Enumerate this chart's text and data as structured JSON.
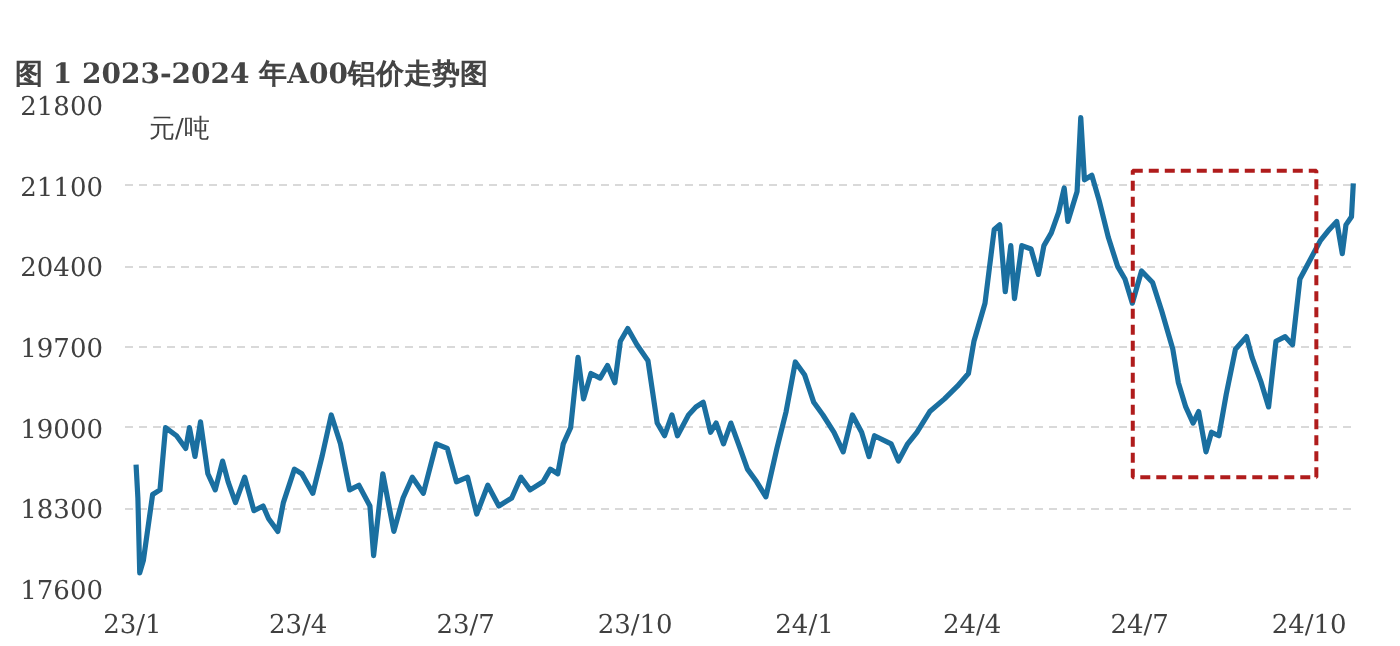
{
  "chart_data": {
    "type": "line",
    "title": "图 1 2023-2024 年A00铝价走势图",
    "ylabel": "元/吨",
    "xlim": [
      "2022-12-28",
      "2024-10-27"
    ],
    "xticks": [
      {
        "value": "2023-01-01",
        "label": "23/1"
      },
      {
        "value": "2023-04-01",
        "label": "23/4"
      },
      {
        "value": "2023-07-01",
        "label": "23/7"
      },
      {
        "value": "2023-10-01",
        "label": "23/10"
      },
      {
        "value": "2024-01-01",
        "label": "24/1"
      },
      {
        "value": "2024-04-01",
        "label": "24/4"
      },
      {
        "value": "2024-07-01",
        "label": "24/7"
      },
      {
        "value": "2024-10-01",
        "label": "24/10"
      }
    ],
    "ylim": [
      17600,
      21800
    ],
    "yticks": [
      17600,
      18300,
      19000,
      19700,
      20400,
      21100,
      21800
    ],
    "grid": "y",
    "marker": "none",
    "line_style": "solid",
    "series": [
      {
        "color": "#1a6fa0",
        "x": [
          "2023-01-03",
          "2023-01-04",
          "2023-01-05",
          "2023-01-07",
          "2023-01-12",
          "2023-01-16",
          "2023-01-19",
          "2023-01-25",
          "2023-01-30",
          "2023-02-01",
          "2023-02-04",
          "2023-02-07",
          "2023-02-11",
          "2023-02-15",
          "2023-02-19",
          "2023-02-22",
          "2023-02-26",
          "2023-03-03",
          "2023-03-08",
          "2023-03-13",
          "2023-03-16",
          "2023-03-21",
          "2023-03-24",
          "2023-03-30",
          "2023-04-03",
          "2023-04-09",
          "2023-04-14",
          "2023-04-19",
          "2023-04-24",
          "2023-04-29",
          "2023-05-04",
          "2023-05-10",
          "2023-05-12",
          "2023-05-17",
          "2023-05-23",
          "2023-05-28",
          "2023-06-02",
          "2023-06-08",
          "2023-06-15",
          "2023-06-21",
          "2023-06-26",
          "2023-07-02",
          "2023-07-07",
          "2023-07-13",
          "2023-07-19",
          "2023-07-26",
          "2023-07-31",
          "2023-08-05",
          "2023-08-12",
          "2023-08-16",
          "2023-08-20",
          "2023-08-23",
          "2023-08-27",
          "2023-08-31",
          "2023-09-03",
          "2023-09-07",
          "2023-09-12",
          "2023-09-16",
          "2023-09-20",
          "2023-09-23",
          "2023-09-27",
          "2023-10-02",
          "2023-10-08",
          "2023-10-13",
          "2023-10-17",
          "2023-10-21",
          "2023-10-24",
          "2023-10-30",
          "2023-11-03",
          "2023-11-07",
          "2023-11-11",
          "2023-11-14",
          "2023-11-18",
          "2023-11-22",
          "2023-11-27",
          "2023-12-01",
          "2023-12-06",
          "2023-12-11",
          "2023-12-17",
          "2023-12-22",
          "2023-12-27",
          "2024-01-01",
          "2024-01-06",
          "2024-01-11",
          "2024-01-17",
          "2024-01-22",
          "2024-01-27",
          "2024-02-01",
          "2024-02-05",
          "2024-02-08",
          "2024-02-17",
          "2024-02-21",
          "2024-02-26",
          "2024-03-02",
          "2024-03-09",
          "2024-03-17",
          "2024-03-24",
          "2024-03-30",
          "2024-04-02",
          "2024-04-08",
          "2024-04-13",
          "2024-04-16",
          "2024-04-19",
          "2024-04-22",
          "2024-04-24",
          "2024-04-28",
          "2024-05-03",
          "2024-05-07",
          "2024-05-10",
          "2024-05-14",
          "2024-05-18",
          "2024-05-21",
          "2024-05-23",
          "2024-05-28",
          "2024-05-30",
          "2024-06-01",
          "2024-06-05",
          "2024-06-09",
          "2024-06-14",
          "2024-06-19",
          "2024-06-23",
          "2024-06-27",
          "2024-07-02",
          "2024-07-08",
          "2024-07-13",
          "2024-07-19",
          "2024-07-22",
          "2024-07-26",
          "2024-07-30",
          "2024-08-02",
          "2024-08-06",
          "2024-08-09",
          "2024-08-13",
          "2024-08-17",
          "2024-08-22",
          "2024-08-28",
          "2024-08-31",
          "2024-09-05",
          "2024-09-09",
          "2024-09-13",
          "2024-09-18",
          "2024-09-22",
          "2024-09-26",
          "2024-10-01",
          "2024-10-07",
          "2024-10-12",
          "2024-10-16",
          "2024-10-19",
          "2024-10-21",
          "2024-10-24",
          "2024-10-25"
        ],
        "values": [
          18680,
          18390,
          17740,
          17850,
          18420,
          18460,
          19000,
          18930,
          18820,
          19000,
          18750,
          19050,
          18600,
          18460,
          18710,
          18530,
          18350,
          18570,
          18280,
          18320,
          18210,
          18100,
          18350,
          18640,
          18600,
          18430,
          18750,
          19110,
          18860,
          18460,
          18500,
          18320,
          17890,
          18600,
          18100,
          18390,
          18570,
          18430,
          18860,
          18820,
          18530,
          18570,
          18250,
          18500,
          18320,
          18390,
          18570,
          18460,
          18530,
          18640,
          18600,
          18860,
          19000,
          19610,
          19250,
          19470,
          19430,
          19540,
          19390,
          19750,
          19860,
          19720,
          19580,
          19040,
          18930,
          19110,
          18930,
          19110,
          19180,
          19220,
          18960,
          19040,
          18860,
          19040,
          18820,
          18640,
          18530,
          18400,
          18820,
          19140,
          19570,
          19460,
          19220,
          19110,
          18960,
          18790,
          19110,
          18960,
          18750,
          18930,
          18860,
          18710,
          18860,
          18960,
          19140,
          19250,
          19360,
          19470,
          19750,
          20080,
          20720,
          20760,
          20180,
          20580,
          20120,
          20580,
          20550,
          20330,
          20580,
          20690,
          20870,
          21080,
          20790,
          21050,
          21690,
          21150,
          21190,
          20970,
          20650,
          20400,
          20290,
          20080,
          20360,
          20260,
          20010,
          19680,
          19390,
          19180,
          19040,
          19140,
          18790,
          18960,
          18930,
          19290,
          19680,
          19790,
          19610,
          19390,
          19180,
          19750,
          19790,
          19720,
          20290,
          20440,
          20620,
          20720,
          20790,
          20510,
          20760,
          20830,
          21120
        ]
      }
    ]
  }
}
